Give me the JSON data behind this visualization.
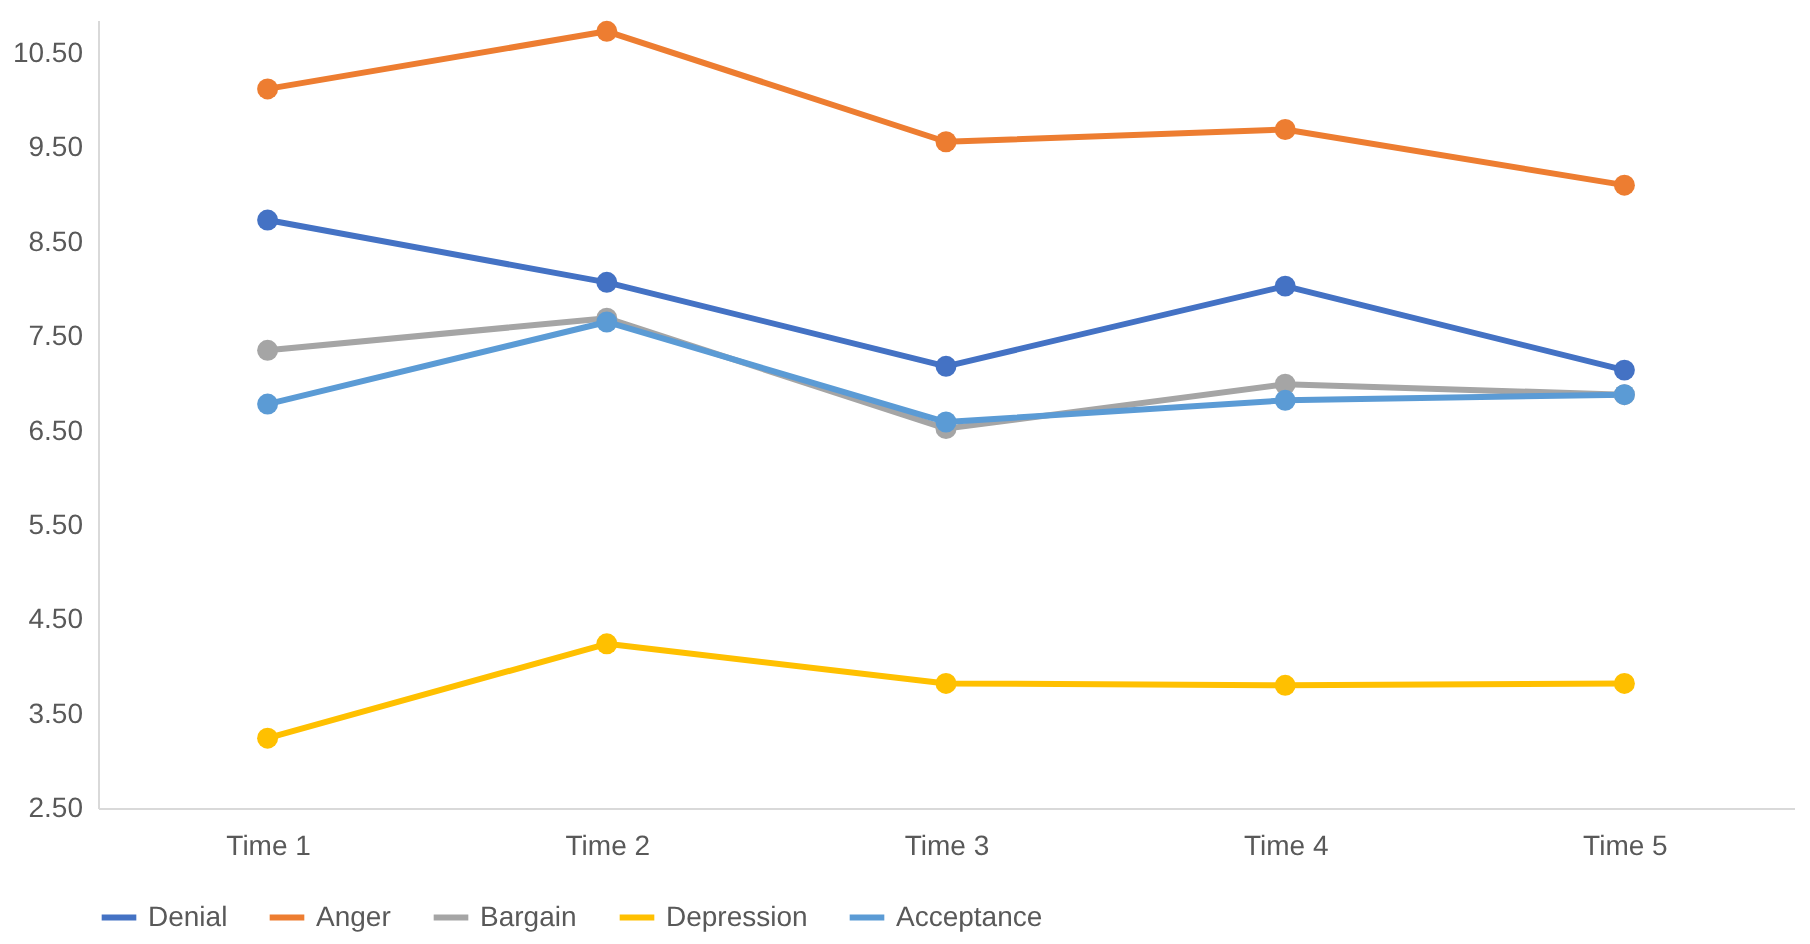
{
  "chart_data": {
    "type": "line",
    "categories": [
      "Time 1",
      "Time 2",
      "Time 3",
      "Time 4",
      "Time 5"
    ],
    "series": [
      {
        "name": "Denial",
        "color": "#4472c4",
        "values": [
          8.73,
          8.07,
          7.18,
          8.03,
          7.14
        ]
      },
      {
        "name": "Anger",
        "color": "#ed7d31",
        "values": [
          10.12,
          10.73,
          9.56,
          9.69,
          9.1
        ]
      },
      {
        "name": "Bargain",
        "color": "#a5a5a5",
        "values": [
          7.35,
          7.69,
          6.52,
          6.99,
          6.88
        ]
      },
      {
        "name": "Depression",
        "color": "#ffc000",
        "values": [
          3.24,
          4.24,
          3.82,
          3.8,
          3.82
        ]
      },
      {
        "name": "Acceptance",
        "color": "#5b9bd5",
        "values": [
          6.78,
          7.65,
          6.59,
          6.82,
          6.88
        ]
      }
    ],
    "ylim": [
      2.5,
      10.85
    ],
    "yticks": [
      {
        "value": 2.5,
        "label": "2.50"
      },
      {
        "value": 3.5,
        "label": "3.50"
      },
      {
        "value": 4.5,
        "label": "4.50"
      },
      {
        "value": 5.5,
        "label": "5.50"
      },
      {
        "value": 6.5,
        "label": "6.50"
      },
      {
        "value": 7.5,
        "label": "7.50"
      },
      {
        "value": 8.5,
        "label": "8.50"
      },
      {
        "value": 9.5,
        "label": "9.50"
      },
      {
        "value": 10.5,
        "label": "10.50"
      }
    ],
    "grid": false,
    "legend": "bottom",
    "marker": "circle",
    "line_style": "solid"
  }
}
